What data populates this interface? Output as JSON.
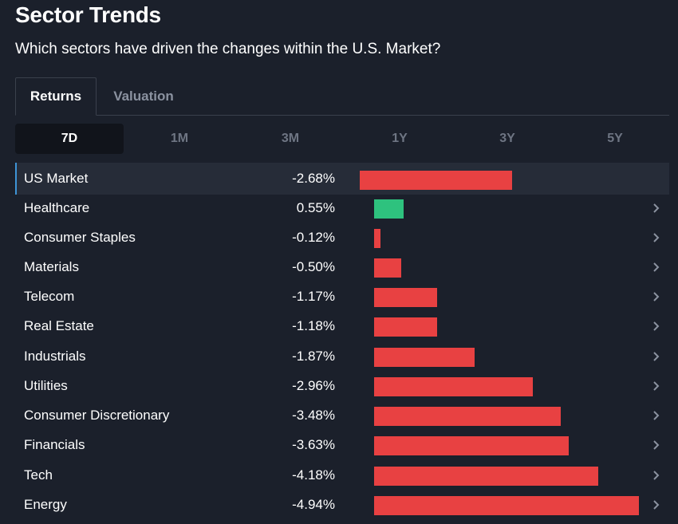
{
  "header": {
    "title": "Sector Trends",
    "subtitle": "Which sectors have driven the changes within the U.S. Market?"
  },
  "tabs": [
    {
      "label": "Returns",
      "active": true
    },
    {
      "label": "Valuation",
      "active": false
    }
  ],
  "periods": [
    {
      "label": "7D",
      "active": true
    },
    {
      "label": "1M",
      "active": false
    },
    {
      "label": "3M",
      "active": false
    },
    {
      "label": "1Y",
      "active": false
    },
    {
      "label": "3Y",
      "active": false
    },
    {
      "label": "5Y",
      "active": false
    }
  ],
  "colors": {
    "positive": "#2ec27e",
    "negative": "#e84142",
    "accent": "#3e94d6",
    "chevron": "#8b92a0"
  },
  "chart_data": {
    "type": "bar",
    "orientation": "horizontal",
    "categories": [
      "US Market",
      "Healthcare",
      "Consumer Staples",
      "Materials",
      "Telecom",
      "Real Estate",
      "Industrials",
      "Utilities",
      "Consumer Discretionary",
      "Financials",
      "Tech",
      "Energy"
    ],
    "values": [
      -2.68,
      0.55,
      -0.12,
      -0.5,
      -1.17,
      -1.18,
      -1.87,
      -2.96,
      -3.48,
      -3.63,
      -4.18,
      -4.94
    ],
    "value_labels": [
      "-2.68%",
      "0.55%",
      "-0.12%",
      "-0.50%",
      "-1.17%",
      "-1.18%",
      "-1.87%",
      "-2.96%",
      "-3.48%",
      "-3.63%",
      "-4.18%",
      "-4.94%"
    ],
    "highlighted": "US Market",
    "title": "",
    "xlabel": "",
    "ylabel": ""
  }
}
